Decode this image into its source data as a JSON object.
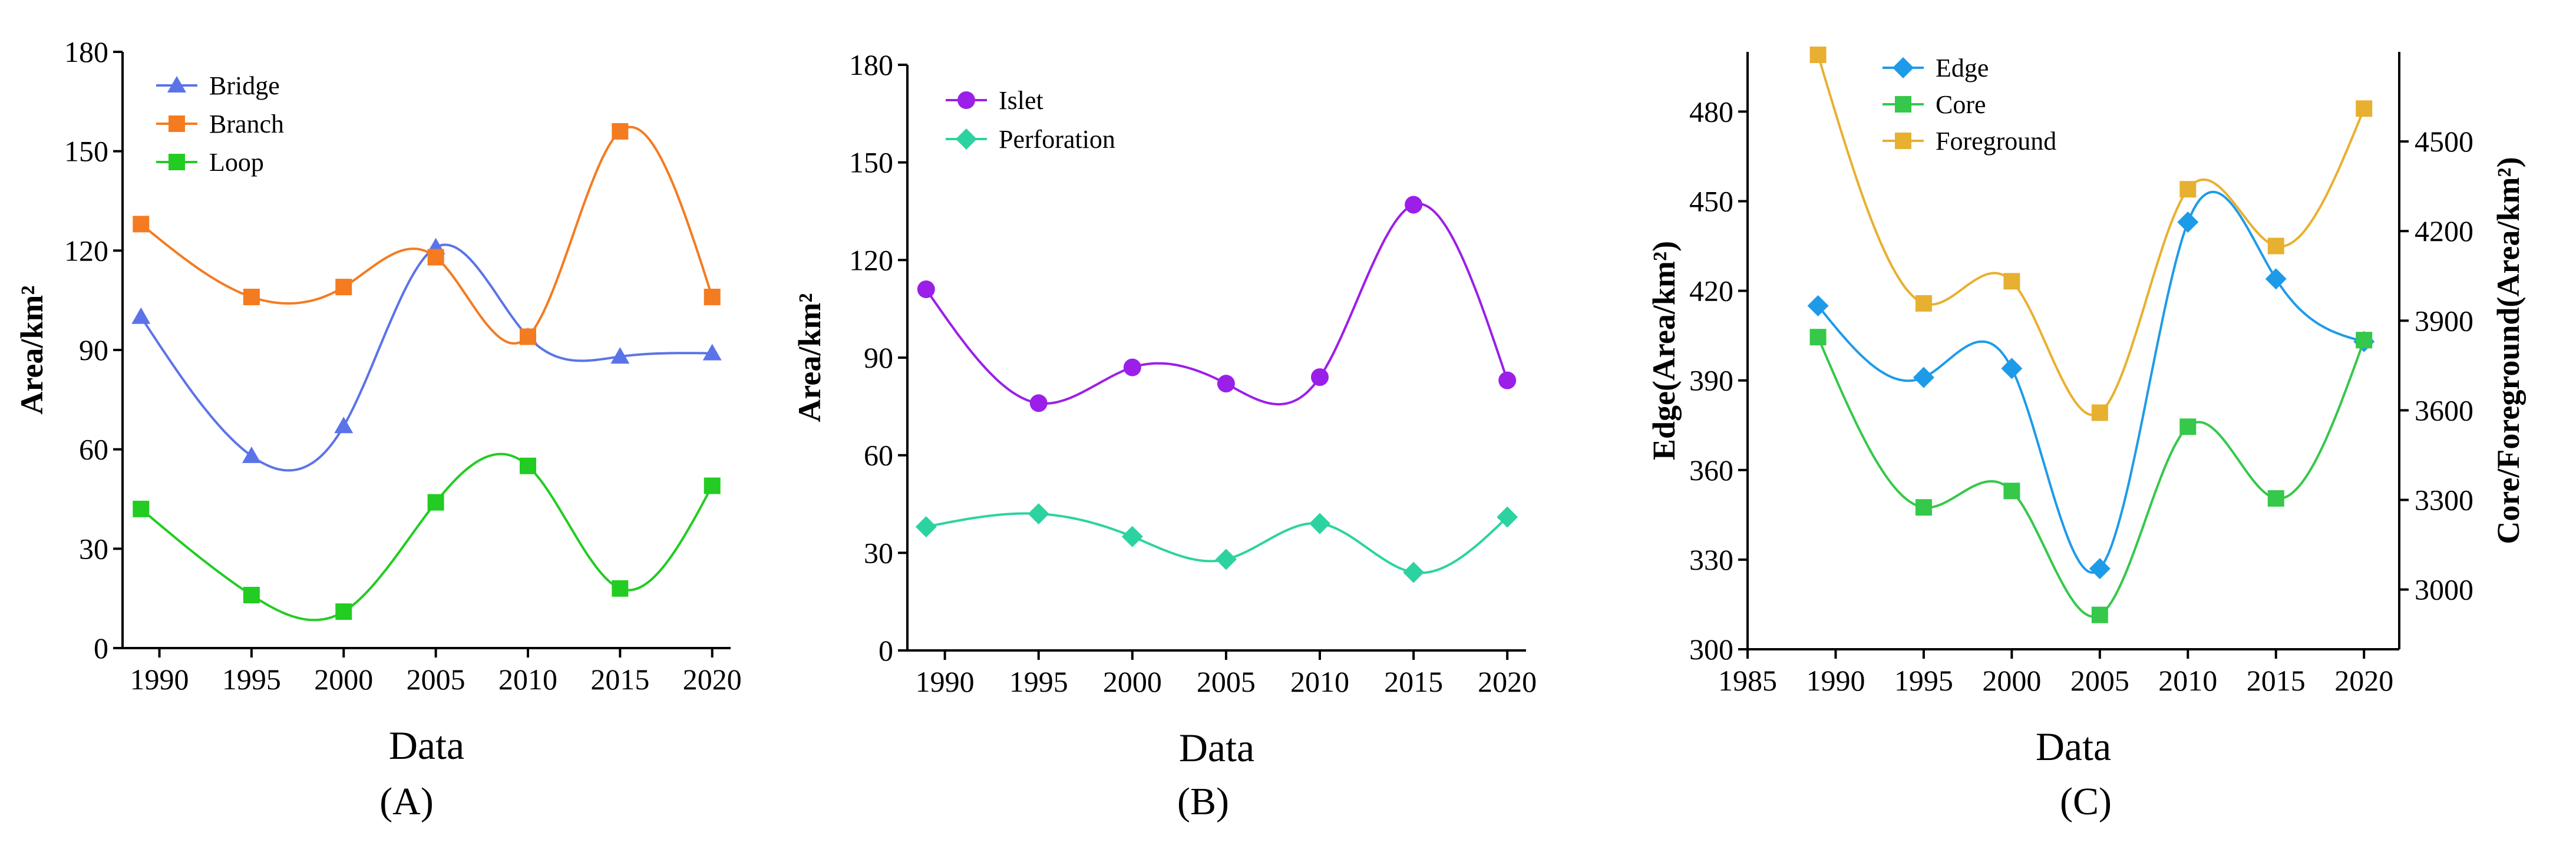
{
  "chart_data": [
    {
      "panel_label": "(A)",
      "type": "line",
      "xlabel": "Data",
      "ylabel": "Area/km²",
      "x": [
        1989,
        1995,
        2000,
        2005,
        2010,
        2015,
        2020
      ],
      "xlim": [
        1988,
        2021
      ],
      "xticks": [
        1990,
        1995,
        2000,
        2005,
        2010,
        2015,
        2020
      ],
      "ylim": [
        0,
        180
      ],
      "yticks": [
        0,
        30,
        60,
        90,
        120,
        150,
        180
      ],
      "legend_position": "top-left",
      "series": [
        {
          "name": "Bridge",
          "marker": "triangle",
          "color": "#5b73e8",
          "values": [
            100,
            58,
            67,
            121,
            94,
            88,
            89
          ]
        },
        {
          "name": "Branch",
          "marker": "square",
          "color": "#f47b20",
          "values": [
            128,
            106,
            109,
            118,
            94,
            156,
            106
          ]
        },
        {
          "name": "Loop",
          "marker": "square",
          "color": "#22cc22",
          "values": [
            42,
            16,
            11,
            44,
            55,
            18,
            49
          ]
        }
      ]
    },
    {
      "panel_label": "(B)",
      "type": "line",
      "xlabel": "Data",
      "ylabel": "Area/km²",
      "x": [
        1989,
        1995,
        2000,
        2005,
        2010,
        2015,
        2020
      ],
      "xlim": [
        1988,
        2021
      ],
      "xticks": [
        1990,
        1995,
        2000,
        2005,
        2010,
        2015,
        2020
      ],
      "ylim": [
        0,
        180
      ],
      "yticks": [
        0,
        30,
        60,
        90,
        120,
        150,
        180
      ],
      "legend_position": "top-left",
      "series": [
        {
          "name": "Islet",
          "marker": "circle",
          "color": "#9b1fe8",
          "values": [
            111,
            76,
            87,
            82,
            84,
            137,
            83
          ]
        },
        {
          "name": "Perforation",
          "marker": "diamond",
          "color": "#2cd3a0",
          "values": [
            38,
            42,
            35,
            28,
            39,
            24,
            41
          ]
        }
      ]
    },
    {
      "panel_label": "(C)",
      "type": "line",
      "xlabel": "Data",
      "ylabel": "Edge(Area/km²)",
      "y2label": "Core/Foreground(Area/km²)",
      "x": [
        1989,
        1995,
        2000,
        2005,
        2010,
        2015,
        2020
      ],
      "xlim": [
        1985,
        2022
      ],
      "xticks": [
        1985,
        1990,
        1995,
        2000,
        2005,
        2010,
        2015,
        2020
      ],
      "ylim": [
        300,
        500
      ],
      "yticks": [
        300,
        330,
        360,
        390,
        420,
        450,
        480
      ],
      "y2lim": [
        2800,
        4800
      ],
      "y2ticks": [
        3000,
        3300,
        3600,
        3900,
        4200,
        4500
      ],
      "legend_position": "top-left",
      "series": [
        {
          "name": "Edge",
          "axis": "left",
          "marker": "diamond",
          "color": "#1e9be8",
          "values": [
            415,
            391,
            394,
            327,
            443,
            424,
            403
          ]
        },
        {
          "name": "Core",
          "axis": "right",
          "marker": "square",
          "color": "#35c84a",
          "values": [
            3845,
            3275,
            3330,
            2915,
            3545,
            3305,
            3835
          ]
        },
        {
          "name": "Foreground",
          "axis": "right",
          "marker": "square",
          "color": "#e8b030",
          "values": [
            4790,
            3958,
            4032,
            3592,
            4340,
            4150,
            4610
          ]
        }
      ]
    }
  ]
}
